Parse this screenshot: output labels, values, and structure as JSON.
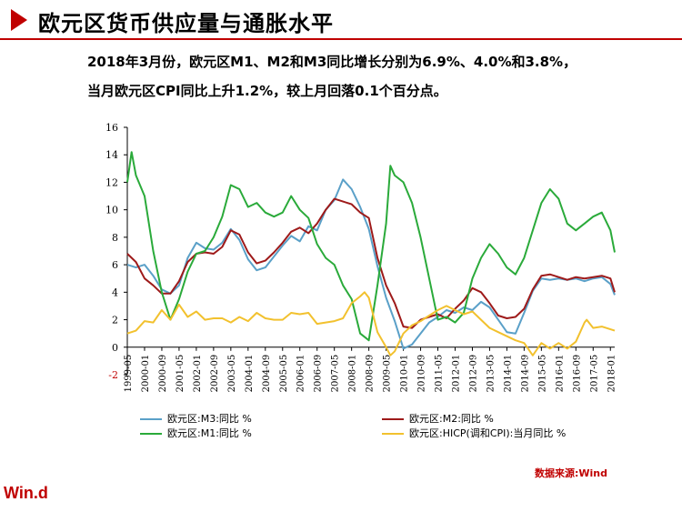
{
  "header": {
    "title": "欧元区货币供应量与通胀水平"
  },
  "summary": {
    "line1": "2018年3月份，欧元区M1、M2和M3同比增长分别为6.9%、4.0%和3.8%，",
    "line2": "当月欧元区CPI同比上升1.2%，较上月回落0.1个百分点。"
  },
  "source": "数据来源:Wind",
  "brand": "Win.d",
  "chart_data": {
    "type": "line",
    "xlabel": "",
    "ylabel": "",
    "ylim": [
      -2,
      16
    ],
    "yticks": [
      -2,
      0,
      2,
      4,
      6,
      8,
      10,
      12,
      14,
      16
    ],
    "xticks": [
      "1999-05",
      "2000-01",
      "2000-09",
      "2001-05",
      "2002-01",
      "2002-09",
      "2003-05",
      "2004-01",
      "2004-09",
      "2005-05",
      "2006-01",
      "2006-09",
      "2007-05",
      "2008-01",
      "2008-09",
      "2009-05",
      "2010-01",
      "2010-09",
      "2011-05",
      "2012-01",
      "2012-09",
      "2013-05",
      "2014-01",
      "2014-09",
      "2015-05",
      "2016-01",
      "2016-09",
      "2017-05",
      "2018-01"
    ],
    "x_range": [
      "1999-05",
      "2018-03"
    ],
    "grid": false,
    "legend_position": "bottom",
    "series": [
      {
        "name": "欧元区:M3:同比  %",
        "color": "#5aa0c8",
        "points": [
          [
            "1999-05",
            6.0
          ],
          [
            "1999-09",
            5.8
          ],
          [
            "2000-01",
            6.0
          ],
          [
            "2000-05",
            5.2
          ],
          [
            "2000-09",
            4.2
          ],
          [
            "2001-01",
            3.9
          ],
          [
            "2001-05",
            4.5
          ],
          [
            "2001-09",
            6.5
          ],
          [
            "2002-01",
            7.6
          ],
          [
            "2002-05",
            7.2
          ],
          [
            "2002-09",
            7.1
          ],
          [
            "2003-01",
            7.6
          ],
          [
            "2003-05",
            8.6
          ],
          [
            "2003-09",
            7.8
          ],
          [
            "2004-01",
            6.4
          ],
          [
            "2004-05",
            5.6
          ],
          [
            "2004-09",
            5.8
          ],
          [
            "2005-01",
            6.6
          ],
          [
            "2005-05",
            7.4
          ],
          [
            "2005-09",
            8.1
          ],
          [
            "2006-01",
            7.7
          ],
          [
            "2006-05",
            8.8
          ],
          [
            "2006-09",
            8.5
          ],
          [
            "2007-01",
            10.0
          ],
          [
            "2007-05",
            10.7
          ],
          [
            "2007-09",
            12.2
          ],
          [
            "2008-01",
            11.5
          ],
          [
            "2008-05",
            10.2
          ],
          [
            "2008-09",
            8.6
          ],
          [
            "2009-01",
            5.9
          ],
          [
            "2009-05",
            3.6
          ],
          [
            "2009-09",
            1.9
          ],
          [
            "2010-01",
            -0.1
          ],
          [
            "2010-05",
            0.2
          ],
          [
            "2010-09",
            1.0
          ],
          [
            "2011-01",
            1.8
          ],
          [
            "2011-05",
            2.2
          ],
          [
            "2011-09",
            2.7
          ],
          [
            "2012-01",
            2.5
          ],
          [
            "2012-05",
            2.9
          ],
          [
            "2012-09",
            2.7
          ],
          [
            "2013-01",
            3.3
          ],
          [
            "2013-05",
            2.9
          ],
          [
            "2013-09",
            2.0
          ],
          [
            "2014-01",
            1.1
          ],
          [
            "2014-05",
            1.0
          ],
          [
            "2014-09",
            2.5
          ],
          [
            "2015-01",
            4.1
          ],
          [
            "2015-05",
            5.0
          ],
          [
            "2015-09",
            4.9
          ],
          [
            "2016-01",
            5.0
          ],
          [
            "2016-05",
            4.9
          ],
          [
            "2016-09",
            5.0
          ],
          [
            "2017-01",
            4.8
          ],
          [
            "2017-05",
            5.0
          ],
          [
            "2017-09",
            5.1
          ],
          [
            "2018-01",
            4.6
          ],
          [
            "2018-03",
            3.8
          ]
        ]
      },
      {
        "name": "欧元区:M2:同比  %",
        "color": "#9e1a1a",
        "points": [
          [
            "1999-05",
            6.8
          ],
          [
            "1999-09",
            6.2
          ],
          [
            "2000-01",
            5.0
          ],
          [
            "2000-05",
            4.5
          ],
          [
            "2000-09",
            3.9
          ],
          [
            "2001-01",
            3.9
          ],
          [
            "2001-05",
            4.8
          ],
          [
            "2001-09",
            6.2
          ],
          [
            "2002-01",
            6.8
          ],
          [
            "2002-05",
            6.9
          ],
          [
            "2002-09",
            6.8
          ],
          [
            "2003-01",
            7.3
          ],
          [
            "2003-05",
            8.5
          ],
          [
            "2003-09",
            8.2
          ],
          [
            "2004-01",
            6.9
          ],
          [
            "2004-05",
            6.1
          ],
          [
            "2004-09",
            6.3
          ],
          [
            "2005-01",
            6.9
          ],
          [
            "2005-05",
            7.6
          ],
          [
            "2005-09",
            8.4
          ],
          [
            "2006-01",
            8.7
          ],
          [
            "2006-05",
            8.3
          ],
          [
            "2006-09",
            9.0
          ],
          [
            "2007-01",
            10.0
          ],
          [
            "2007-05",
            10.8
          ],
          [
            "2007-09",
            10.6
          ],
          [
            "2008-01",
            10.4
          ],
          [
            "2008-05",
            9.8
          ],
          [
            "2008-09",
            9.4
          ],
          [
            "2009-01",
            6.5
          ],
          [
            "2009-05",
            4.5
          ],
          [
            "2009-09",
            3.2
          ],
          [
            "2010-01",
            1.5
          ],
          [
            "2010-05",
            1.4
          ],
          [
            "2010-09",
            2.0
          ],
          [
            "2011-01",
            2.2
          ],
          [
            "2011-05",
            2.4
          ],
          [
            "2011-09",
            2.1
          ],
          [
            "2012-01",
            2.8
          ],
          [
            "2012-05",
            3.4
          ],
          [
            "2012-09",
            4.3
          ],
          [
            "2013-01",
            4.0
          ],
          [
            "2013-05",
            3.2
          ],
          [
            "2013-09",
            2.3
          ],
          [
            "2014-01",
            2.1
          ],
          [
            "2014-05",
            2.2
          ],
          [
            "2014-09",
            2.8
          ],
          [
            "2015-01",
            4.2
          ],
          [
            "2015-05",
            5.2
          ],
          [
            "2015-09",
            5.3
          ],
          [
            "2016-01",
            5.1
          ],
          [
            "2016-05",
            4.9
          ],
          [
            "2016-09",
            5.1
          ],
          [
            "2017-01",
            5.0
          ],
          [
            "2017-05",
            5.1
          ],
          [
            "2017-09",
            5.2
          ],
          [
            "2018-01",
            5.0
          ],
          [
            "2018-03",
            4.0
          ]
        ]
      },
      {
        "name": "欧元区:M1:同比  %",
        "color": "#2aaa3a",
        "points": [
          [
            "1999-05",
            12.0
          ],
          [
            "1999-07",
            14.2
          ],
          [
            "1999-09",
            12.5
          ],
          [
            "2000-01",
            11.0
          ],
          [
            "2000-05",
            7.0
          ],
          [
            "2000-09",
            4.0
          ],
          [
            "2001-01",
            2.0
          ],
          [
            "2001-05",
            3.5
          ],
          [
            "2001-09",
            5.5
          ],
          [
            "2002-01",
            6.8
          ],
          [
            "2002-05",
            7.0
          ],
          [
            "2002-09",
            8.0
          ],
          [
            "2003-01",
            9.5
          ],
          [
            "2003-05",
            11.8
          ],
          [
            "2003-09",
            11.5
          ],
          [
            "2004-01",
            10.2
          ],
          [
            "2004-05",
            10.5
          ],
          [
            "2004-09",
            9.8
          ],
          [
            "2005-01",
            9.5
          ],
          [
            "2005-05",
            9.8
          ],
          [
            "2005-09",
            11.0
          ],
          [
            "2006-01",
            10.0
          ],
          [
            "2006-05",
            9.4
          ],
          [
            "2006-09",
            7.5
          ],
          [
            "2007-01",
            6.5
          ],
          [
            "2007-05",
            6.0
          ],
          [
            "2007-09",
            4.5
          ],
          [
            "2008-01",
            3.5
          ],
          [
            "2008-05",
            1.0
          ],
          [
            "2008-09",
            0.5
          ],
          [
            "2009-01",
            4.5
          ],
          [
            "2009-05",
            9.0
          ],
          [
            "2009-07",
            13.2
          ],
          [
            "2009-09",
            12.5
          ],
          [
            "2010-01",
            12.0
          ],
          [
            "2010-05",
            10.5
          ],
          [
            "2010-09",
            8.0
          ],
          [
            "2011-01",
            5.0
          ],
          [
            "2011-05",
            2.0
          ],
          [
            "2011-09",
            2.2
          ],
          [
            "2012-01",
            1.8
          ],
          [
            "2012-05",
            2.5
          ],
          [
            "2012-09",
            5.0
          ],
          [
            "2013-01",
            6.5
          ],
          [
            "2013-05",
            7.5
          ],
          [
            "2013-09",
            6.8
          ],
          [
            "2014-01",
            5.8
          ],
          [
            "2014-05",
            5.3
          ],
          [
            "2014-09",
            6.5
          ],
          [
            "2015-01",
            8.5
          ],
          [
            "2015-05",
            10.5
          ],
          [
            "2015-09",
            11.5
          ],
          [
            "2016-01",
            10.8
          ],
          [
            "2016-05",
            9.0
          ],
          [
            "2016-09",
            8.5
          ],
          [
            "2017-01",
            9.0
          ],
          [
            "2017-05",
            9.5
          ],
          [
            "2017-09",
            9.8
          ],
          [
            "2018-01",
            8.5
          ],
          [
            "2018-03",
            6.9
          ]
        ]
      },
      {
        "name": "欧元区:HICP(调和CPI):当月同比  %",
        "color": "#f2c12e",
        "points": [
          [
            "1999-05",
            1.0
          ],
          [
            "1999-09",
            1.2
          ],
          [
            "2000-01",
            1.9
          ],
          [
            "2000-05",
            1.8
          ],
          [
            "2000-09",
            2.7
          ],
          [
            "2001-01",
            2.0
          ],
          [
            "2001-05",
            3.1
          ],
          [
            "2001-09",
            2.2
          ],
          [
            "2002-01",
            2.6
          ],
          [
            "2002-05",
            2.0
          ],
          [
            "2002-09",
            2.1
          ],
          [
            "2003-01",
            2.1
          ],
          [
            "2003-05",
            1.8
          ],
          [
            "2003-09",
            2.2
          ],
          [
            "2004-01",
            1.9
          ],
          [
            "2004-05",
            2.5
          ],
          [
            "2004-09",
            2.1
          ],
          [
            "2005-01",
            2.0
          ],
          [
            "2005-05",
            2.0
          ],
          [
            "2005-09",
            2.5
          ],
          [
            "2006-01",
            2.4
          ],
          [
            "2006-05",
            2.5
          ],
          [
            "2006-09",
            1.7
          ],
          [
            "2007-01",
            1.8
          ],
          [
            "2007-05",
            1.9
          ],
          [
            "2007-09",
            2.1
          ],
          [
            "2008-01",
            3.2
          ],
          [
            "2008-05",
            3.7
          ],
          [
            "2008-07",
            4.0
          ],
          [
            "2008-09",
            3.6
          ],
          [
            "2009-01",
            1.1
          ],
          [
            "2009-05",
            0.0
          ],
          [
            "2009-07",
            -0.6
          ],
          [
            "2009-09",
            -0.3
          ],
          [
            "2010-01",
            1.0
          ],
          [
            "2010-05",
            1.6
          ],
          [
            "2010-09",
            1.9
          ],
          [
            "2011-01",
            2.3
          ],
          [
            "2011-05",
            2.7
          ],
          [
            "2011-09",
            3.0
          ],
          [
            "2012-01",
            2.7
          ],
          [
            "2012-05",
            2.4
          ],
          [
            "2012-09",
            2.6
          ],
          [
            "2013-01",
            2.0
          ],
          [
            "2013-05",
            1.4
          ],
          [
            "2013-09",
            1.1
          ],
          [
            "2014-01",
            0.8
          ],
          [
            "2014-05",
            0.5
          ],
          [
            "2014-09",
            0.3
          ],
          [
            "2015-01",
            -0.6
          ],
          [
            "2015-05",
            0.3
          ],
          [
            "2015-09",
            -0.1
          ],
          [
            "2016-01",
            0.3
          ],
          [
            "2016-05",
            -0.1
          ],
          [
            "2016-09",
            0.4
          ],
          [
            "2017-01",
            1.8
          ],
          [
            "2017-02",
            2.0
          ],
          [
            "2017-05",
            1.4
          ],
          [
            "2017-09",
            1.5
          ],
          [
            "2018-01",
            1.3
          ],
          [
            "2018-03",
            1.2
          ]
        ]
      }
    ]
  }
}
